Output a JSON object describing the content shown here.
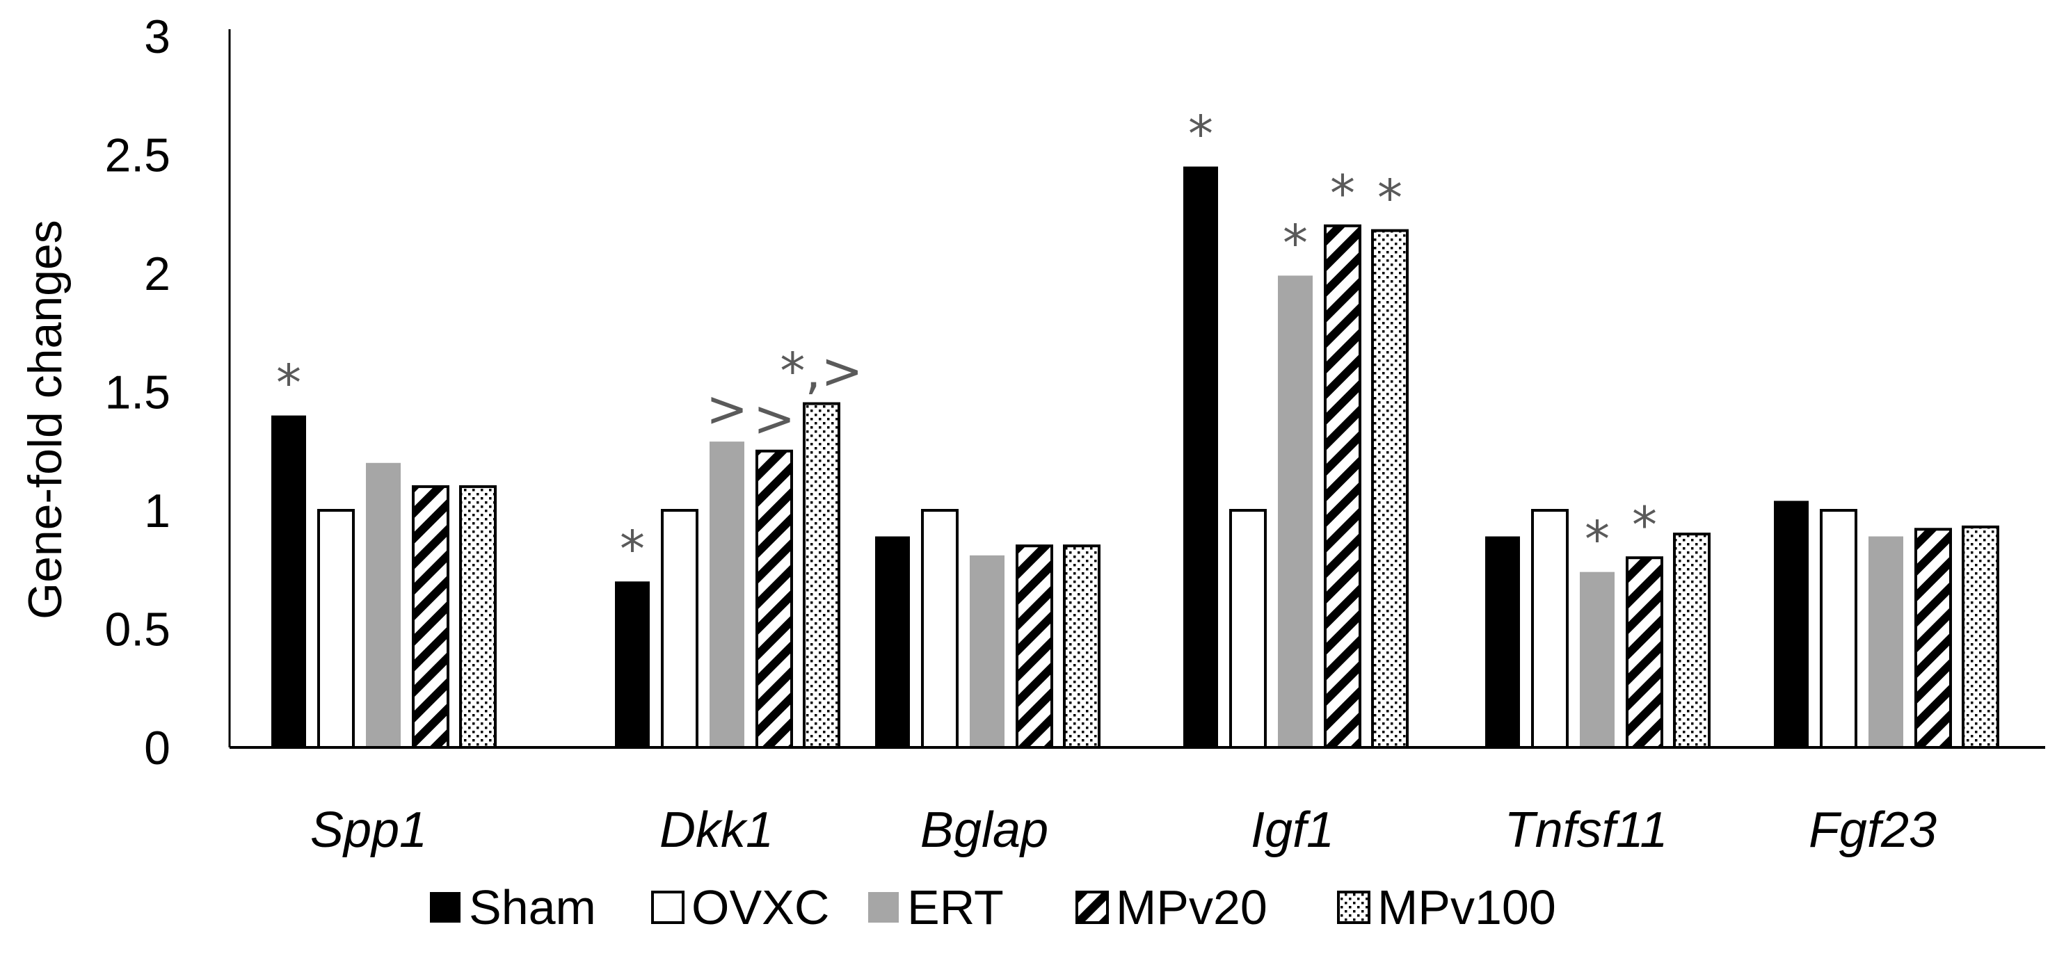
{
  "chart_data": {
    "type": "bar",
    "title": "",
    "xlabel": "",
    "ylabel": "Gene-fold changes",
    "ylim": [
      0,
      3
    ],
    "yticks": [
      "0",
      "0.5",
      "1",
      "1.5",
      "2",
      "2.5",
      "3"
    ],
    "grid": false,
    "legend_position": "bottom",
    "categories": [
      "Spp1",
      "Dkk1",
      "Bglap",
      "Igf1",
      "Tnfsf11",
      "Fgf23"
    ],
    "series": [
      {
        "name": "Sham",
        "pattern": "solid-black",
        "values": [
          1.4,
          0.7,
          0.89,
          2.45,
          0.89,
          1.04
        ]
      },
      {
        "name": "OVXC",
        "pattern": "white",
        "values": [
          1.0,
          1.0,
          1.0,
          1.0,
          1.0,
          1.0
        ]
      },
      {
        "name": "ERT",
        "pattern": "solid-gray",
        "values": [
          1.2,
          1.29,
          0.81,
          1.99,
          0.74,
          0.89
        ]
      },
      {
        "name": "MPv20",
        "pattern": "diagonal",
        "values": [
          1.1,
          1.25,
          0.85,
          2.2,
          0.8,
          0.92
        ]
      },
      {
        "name": "MPv100",
        "pattern": "dotted",
        "values": [
          1.1,
          1.45,
          0.85,
          2.18,
          0.9,
          0.93
        ]
      }
    ],
    "annotations": [
      {
        "category": 0,
        "series": 0,
        "text": "*"
      },
      {
        "category": 1,
        "series": 0,
        "text": "*"
      },
      {
        "category": 1,
        "series": 2,
        "text": ">"
      },
      {
        "category": 1,
        "series": 3,
        "text": ">"
      },
      {
        "category": 1,
        "series": 4,
        "text": "*,>"
      },
      {
        "category": 3,
        "series": 0,
        "text": "*"
      },
      {
        "category": 3,
        "series": 2,
        "text": "*"
      },
      {
        "category": 3,
        "series": 3,
        "text": "*"
      },
      {
        "category": 3,
        "series": 4,
        "text": "*"
      },
      {
        "category": 4,
        "series": 2,
        "text": "*"
      },
      {
        "category": 4,
        "series": 3,
        "text": "*"
      }
    ],
    "colors": {
      "sham": "#000000",
      "ert": "#a6a6a6",
      "outline": "#000000",
      "annotation": "#5a5a5a"
    }
  }
}
